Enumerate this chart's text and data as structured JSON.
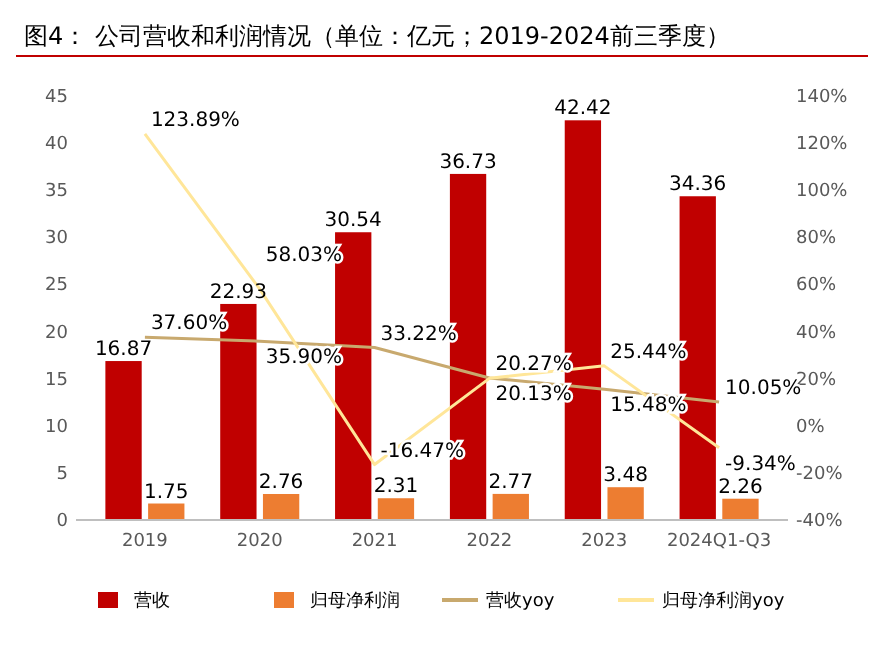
{
  "chart_data": {
    "type": "bar",
    "title": "图4：  公司营收和利润情况（单位：亿元；2019-2024前三季度）",
    "categories": [
      "2019",
      "2020",
      "2021",
      "2022",
      "2023",
      "2024Q1-Q3"
    ],
    "series": [
      {
        "name": "营收",
        "color": "#c00000",
        "values": [
          16.87,
          22.93,
          30.54,
          36.73,
          42.42,
          34.36
        ],
        "value_labels": [
          "16.87",
          "22.93",
          "30.54",
          "36.73",
          "42.42",
          "34.36"
        ]
      },
      {
        "name": "归母净利润",
        "color": "#ed7d31",
        "values": [
          1.75,
          2.76,
          2.31,
          2.77,
          3.48,
          2.26
        ],
        "value_labels": [
          "1.75",
          "2.76",
          "2.31",
          "2.77",
          "3.48",
          "2.26"
        ]
      },
      {
        "name": "营收yoy",
        "type": "line",
        "axis": "y2",
        "color": "#c8a96e",
        "values": [
          37.6,
          35.9,
          33.22,
          20.27,
          15.48,
          10.05
        ],
        "value_labels": [
          "37.60%",
          "35.90%",
          "33.22%",
          "20.27%",
          "15.48%",
          "10.05%"
        ]
      },
      {
        "name": "归母净利润yoy",
        "type": "line",
        "axis": "y2",
        "color": "#ffe699",
        "values": [
          123.89,
          58.03,
          -16.47,
          20.13,
          25.44,
          -9.34
        ],
        "value_labels": [
          "123.89%",
          "58.03%",
          "-16.47%",
          "20.13%",
          "25.44%",
          "-9.34%"
        ]
      }
    ],
    "ylim": [
      0,
      45
    ],
    "yticks": [
      0,
      5,
      10,
      15,
      20,
      25,
      30,
      35,
      40,
      45
    ],
    "y2lim": [
      -40,
      140
    ],
    "y2ticks": [
      {
        "value": -40,
        "label": "-40%"
      },
      {
        "value": -20,
        "label": "-20%"
      },
      {
        "value": 0,
        "label": "0%"
      },
      {
        "value": 20,
        "label": "20%"
      },
      {
        "value": 40,
        "label": "40%"
      },
      {
        "value": 60,
        "label": "60%"
      },
      {
        "value": 80,
        "label": "80%"
      },
      {
        "value": 100,
        "label": "100%"
      },
      {
        "value": 120,
        "label": "120%"
      },
      {
        "value": 140,
        "label": "140%"
      }
    ],
    "legend": "bottom",
    "grid": false
  }
}
